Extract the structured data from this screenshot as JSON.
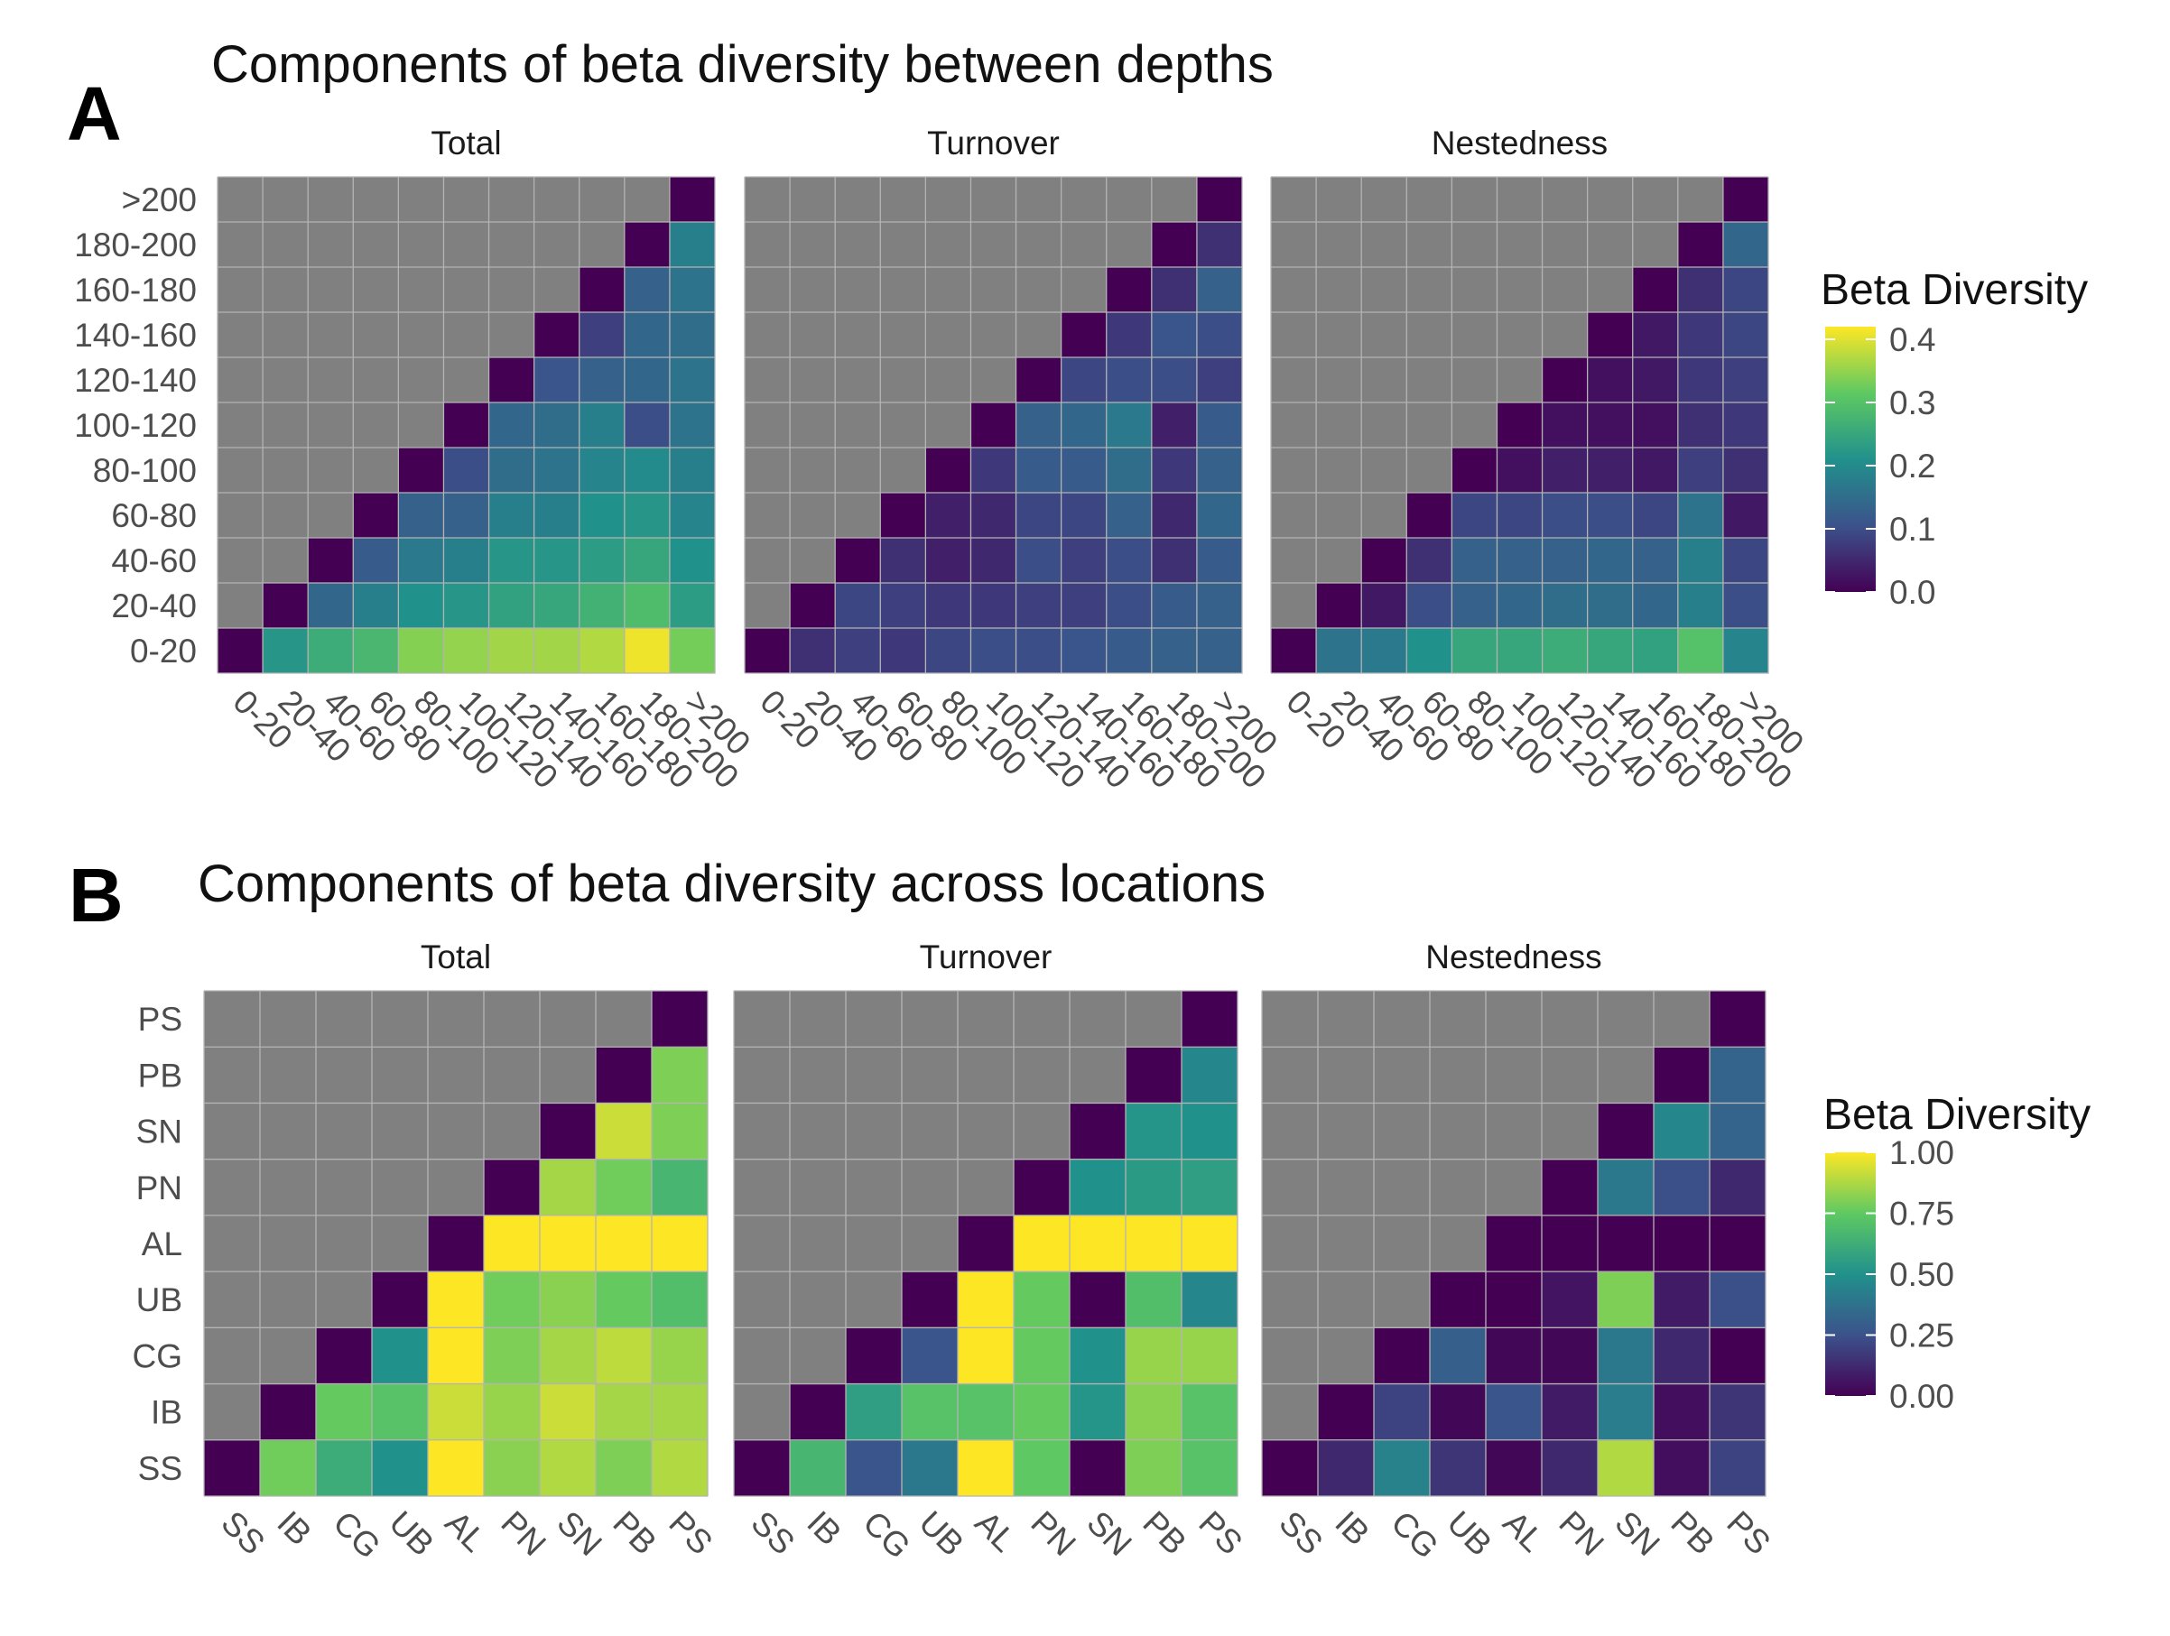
{
  "colors": {
    "background": "#ffffff",
    "tile_missing": "#808080",
    "grid_line": "#b4b4b4",
    "text": "#333333",
    "viridis": [
      "#440154",
      "#3b528b",
      "#21918c",
      "#5ec962",
      "#fde725"
    ]
  },
  "panel_a": {
    "letter": "A",
    "title": "Components of beta diversity between depths"
  },
  "panel_b": {
    "letter": "B",
    "title": "Components of beta diversity across locations"
  },
  "chart_data": [
    {
      "type": "heatmap",
      "title": "Components of beta diversity between depths",
      "facets": [
        "Total",
        "Turnover",
        "Nestedness"
      ],
      "x_categories": [
        "0-20",
        "20-40",
        "40-60",
        "60-80",
        "80-100",
        "100-120",
        "120-140",
        "140-160",
        "160-180",
        "180-200",
        ">200"
      ],
      "y_categories": [
        "0-20",
        "20-40",
        "40-60",
        "60-80",
        "80-100",
        "100-120",
        "120-140",
        "140-160",
        "160-180",
        "180-200",
        ">200"
      ],
      "legend": {
        "title": "Beta Diversity",
        "position": "right",
        "range": [
          0,
          0.42
        ],
        "ticks": [
          "0.0",
          "0.1",
          "0.2",
          "0.3",
          "0.4"
        ],
        "tick_values": [
          0,
          0.1,
          0.2,
          0.3,
          0.4
        ]
      },
      "missing": "upper-left triangle (row > column) not computed",
      "values": {
        "Total": [
          [
            0.0,
            0.22,
            0.26,
            0.28,
            0.34,
            0.35,
            0.36,
            0.36,
            0.37,
            0.41,
            0.33
          ],
          [
            null,
            0.0,
            0.14,
            0.18,
            0.21,
            0.22,
            0.24,
            0.25,
            0.27,
            0.29,
            0.23
          ],
          [
            null,
            null,
            0.0,
            0.12,
            0.17,
            0.18,
            0.22,
            0.22,
            0.23,
            0.25,
            0.21
          ],
          [
            null,
            null,
            null,
            0.0,
            0.13,
            0.13,
            0.18,
            0.18,
            0.21,
            0.22,
            0.19
          ],
          [
            null,
            null,
            null,
            null,
            0.0,
            0.1,
            0.15,
            0.16,
            0.19,
            0.2,
            0.18
          ],
          [
            null,
            null,
            null,
            null,
            null,
            0.0,
            0.14,
            0.15,
            0.18,
            0.1,
            0.16
          ],
          [
            null,
            null,
            null,
            null,
            null,
            null,
            0.0,
            0.11,
            0.13,
            0.14,
            0.16
          ],
          [
            null,
            null,
            null,
            null,
            null,
            null,
            null,
            0.0,
            0.08,
            0.14,
            0.15
          ],
          [
            null,
            null,
            null,
            null,
            null,
            null,
            null,
            null,
            0.0,
            0.13,
            0.16
          ],
          [
            null,
            null,
            null,
            null,
            null,
            null,
            null,
            null,
            null,
            0.0,
            0.18
          ],
          [
            null,
            null,
            null,
            null,
            null,
            null,
            null,
            null,
            null,
            null,
            0.0
          ]
        ],
        "Turnover": [
          [
            0.0,
            0.06,
            0.08,
            0.07,
            0.09,
            0.1,
            0.1,
            0.11,
            0.12,
            0.13,
            0.13
          ],
          [
            null,
            0.0,
            0.09,
            0.08,
            0.07,
            0.07,
            0.08,
            0.08,
            0.1,
            0.12,
            0.13
          ],
          [
            null,
            null,
            0.0,
            0.06,
            0.04,
            0.05,
            0.1,
            0.08,
            0.1,
            0.06,
            0.12
          ],
          [
            null,
            null,
            null,
            0.0,
            0.04,
            0.05,
            0.09,
            0.09,
            0.13,
            0.05,
            0.14
          ],
          [
            null,
            null,
            null,
            null,
            0.0,
            0.07,
            0.12,
            0.12,
            0.15,
            0.07,
            0.13
          ],
          [
            null,
            null,
            null,
            null,
            null,
            0.0,
            0.13,
            0.14,
            0.17,
            0.04,
            0.12
          ],
          [
            null,
            null,
            null,
            null,
            null,
            null,
            0.0,
            0.09,
            0.1,
            0.1,
            0.08
          ],
          [
            null,
            null,
            null,
            null,
            null,
            null,
            null,
            0.0,
            0.07,
            0.11,
            0.1
          ],
          [
            null,
            null,
            null,
            null,
            null,
            null,
            null,
            null,
            0.0,
            0.06,
            0.13
          ],
          [
            null,
            null,
            null,
            null,
            null,
            null,
            null,
            null,
            null,
            0.0,
            0.06
          ],
          [
            null,
            null,
            null,
            null,
            null,
            null,
            null,
            null,
            null,
            null,
            0.0
          ]
        ],
        "Nestedness": [
          [
            0.0,
            0.16,
            0.17,
            0.21,
            0.25,
            0.25,
            0.26,
            0.25,
            0.24,
            0.3,
            0.19
          ],
          [
            null,
            0.0,
            0.03,
            0.1,
            0.13,
            0.14,
            0.15,
            0.15,
            0.14,
            0.18,
            0.1
          ],
          [
            null,
            null,
            0.0,
            0.06,
            0.13,
            0.13,
            0.13,
            0.14,
            0.13,
            0.18,
            0.09
          ],
          [
            null,
            null,
            null,
            0.0,
            0.09,
            0.09,
            0.1,
            0.1,
            0.09,
            0.16,
            0.03
          ],
          [
            null,
            null,
            null,
            null,
            0.0,
            0.02,
            0.04,
            0.04,
            0.03,
            0.08,
            0.06
          ],
          [
            null,
            null,
            null,
            null,
            null,
            0.0,
            0.02,
            0.02,
            0.02,
            0.06,
            0.07
          ],
          [
            null,
            null,
            null,
            null,
            null,
            null,
            0.0,
            0.02,
            0.03,
            0.07,
            0.08
          ],
          [
            null,
            null,
            null,
            null,
            null,
            null,
            null,
            0.0,
            0.03,
            0.07,
            0.09
          ],
          [
            null,
            null,
            null,
            null,
            null,
            null,
            null,
            null,
            0.0,
            0.06,
            0.09
          ],
          [
            null,
            null,
            null,
            null,
            null,
            null,
            null,
            null,
            null,
            0.0,
            0.14
          ],
          [
            null,
            null,
            null,
            null,
            null,
            null,
            null,
            null,
            null,
            null,
            0.0
          ]
        ]
      }
    },
    {
      "type": "heatmap",
      "title": "Components of beta diversity across locations",
      "facets": [
        "Total",
        "Turnover",
        "Nestedness"
      ],
      "x_categories": [
        "SS",
        "IB",
        "CG",
        "UB",
        "AL",
        "PN",
        "SN",
        "PB",
        "PS"
      ],
      "y_categories": [
        "SS",
        "IB",
        "CG",
        "UB",
        "AL",
        "PN",
        "SN",
        "PB",
        "PS"
      ],
      "legend": {
        "title": "Beta Diversity",
        "position": "right",
        "range": [
          0,
          1
        ],
        "ticks": [
          "0.00",
          "0.25",
          "0.50",
          "0.75",
          "1.00"
        ],
        "tick_values": [
          0,
          0.25,
          0.5,
          0.75,
          1
        ]
      },
      "missing": "upper-left triangle (row > column) not computed",
      "values": {
        "Total": [
          [
            0.0,
            0.78,
            0.62,
            0.5,
            1.0,
            0.82,
            0.88,
            0.8,
            0.88
          ],
          [
            null,
            0.0,
            0.76,
            0.72,
            0.92,
            0.84,
            0.92,
            0.86,
            0.86
          ],
          [
            null,
            null,
            0.0,
            0.5,
            1.0,
            0.8,
            0.86,
            0.9,
            0.84
          ],
          [
            null,
            null,
            null,
            0.0,
            1.0,
            0.78,
            0.82,
            0.76,
            0.7
          ],
          [
            null,
            null,
            null,
            null,
            0.0,
            1.0,
            1.0,
            1.0,
            1.0
          ],
          [
            null,
            null,
            null,
            null,
            null,
            0.0,
            0.86,
            0.78,
            0.66
          ],
          [
            null,
            null,
            null,
            null,
            null,
            null,
            0.0,
            0.92,
            0.8
          ],
          [
            null,
            null,
            null,
            null,
            null,
            null,
            null,
            0.0,
            0.8
          ],
          [
            null,
            null,
            null,
            null,
            null,
            null,
            null,
            null,
            0.0
          ]
        ],
        "Turnover": [
          [
            0.0,
            0.66,
            0.26,
            0.4,
            1.0,
            0.75,
            0.0,
            0.8,
            0.72
          ],
          [
            null,
            0.0,
            0.56,
            0.72,
            0.72,
            0.76,
            0.52,
            0.82,
            0.72
          ],
          [
            null,
            null,
            0.0,
            0.26,
            1.0,
            0.76,
            0.5,
            0.84,
            0.84
          ],
          [
            null,
            null,
            null,
            0.0,
            1.0,
            0.76,
            0.0,
            0.7,
            0.46
          ],
          [
            null,
            null,
            null,
            null,
            0.0,
            1.0,
            1.0,
            1.0,
            1.0
          ],
          [
            null,
            null,
            null,
            null,
            null,
            0.0,
            0.5,
            0.54,
            0.56
          ],
          [
            null,
            null,
            null,
            null,
            null,
            null,
            0.0,
            0.52,
            0.5
          ],
          [
            null,
            null,
            null,
            null,
            null,
            null,
            null,
            0.0,
            0.46
          ],
          [
            null,
            null,
            null,
            null,
            null,
            null,
            null,
            null,
            0.0
          ]
        ],
        "Nestedness": [
          [
            0.0,
            0.12,
            0.44,
            0.16,
            0.02,
            0.12,
            0.88,
            0.04,
            0.2
          ],
          [
            null,
            0.0,
            0.2,
            0.02,
            0.26,
            0.08,
            0.42,
            0.04,
            0.16
          ],
          [
            null,
            null,
            0.0,
            0.3,
            0.02,
            0.02,
            0.4,
            0.12,
            0.0
          ],
          [
            null,
            null,
            null,
            0.0,
            0.0,
            0.06,
            0.8,
            0.08,
            0.24
          ],
          [
            null,
            null,
            null,
            null,
            0.0,
            0.0,
            0.0,
            0.0,
            0.0
          ],
          [
            null,
            null,
            null,
            null,
            null,
            0.0,
            0.4,
            0.24,
            0.12
          ],
          [
            null,
            null,
            null,
            null,
            null,
            null,
            0.0,
            0.46,
            0.32
          ],
          [
            null,
            null,
            null,
            null,
            null,
            null,
            null,
            0.0,
            0.32
          ],
          [
            null,
            null,
            null,
            null,
            null,
            null,
            null,
            null,
            0.0
          ]
        ]
      }
    }
  ]
}
